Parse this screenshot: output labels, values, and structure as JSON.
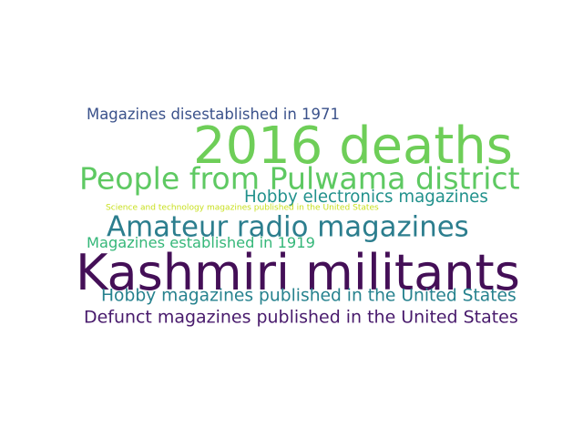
{
  "word_cloud": {
    "words": [
      {
        "text": "Magazines disestablished in 1971",
        "color": "#3b528b"
      },
      {
        "text": "2016 deaths",
        "color": "#6ece58"
      },
      {
        "text": "People from Pulwama district",
        "color": "#5ec962"
      },
      {
        "text": "Hobby electronics magazines",
        "color": "#21918c"
      },
      {
        "text": "Science and technology magazines published in the United States",
        "color": "#c8e020"
      },
      {
        "text": "Amateur radio magazines",
        "color": "#2c7e8e"
      },
      {
        "text": "Magazines established in 1919",
        "color": "#35b779"
      },
      {
        "text": "Kashmiri militants",
        "color": "#440f57"
      },
      {
        "text": "Hobby magazines published in the United States",
        "color": "#26828e"
      },
      {
        "text": "Defunct magazines published in the United States",
        "color": "#481a6c"
      }
    ]
  }
}
